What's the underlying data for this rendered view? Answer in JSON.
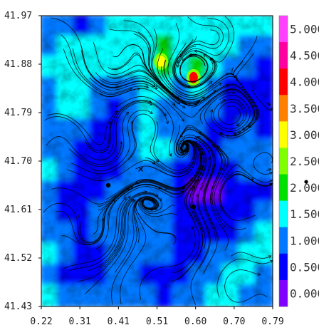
{
  "chart_data": {
    "type": "heatmap",
    "title": "",
    "xlabel": "",
    "ylabel": "",
    "xlim": [
      0.22,
      0.79
    ],
    "ylim": [
      41.43,
      41.97
    ],
    "x_ticks": [
      "0.22",
      "0.31",
      "0.41",
      "0.51",
      "0.60",
      "0.70",
      "0.79"
    ],
    "y_ticks": [
      "41.97",
      "41.88",
      "41.79",
      "41.70",
      "41.61",
      "41.52",
      "41.43"
    ],
    "colorbar": {
      "labels": [
        "0.000",
        "0.500",
        "1.000",
        "1.500",
        "2.000",
        "2.500",
        "3.000",
        "3.500",
        "4.000",
        "4.500",
        "5.000"
      ],
      "colors": [
        "#8000ff",
        "#0000ff",
        "#0078ff",
        "#00ffff",
        "#00e000",
        "#80ff00",
        "#ffff00",
        "#ff8000",
        "#ff0000",
        "#ff00a0",
        "#ff40ff"
      ]
    },
    "field": [
      [
        1.0,
        1.3,
        0.7,
        1.4,
        1.7,
        1.5,
        1.8,
        1.6,
        1.8,
        1.7,
        1.8,
        1.7,
        1.6,
        1.6
      ],
      [
        1.4,
        1.7,
        1.8,
        1.9,
        1.8,
        1.7,
        1.8,
        2.0,
        1.9,
        1.8,
        1.9,
        1.6,
        1.4,
        1.2
      ],
      [
        1.6,
        1.9,
        1.8,
        1.6,
        1.6,
        1.7,
        1.8,
        2.4,
        1.6,
        2.2,
        1.7,
        1.3,
        1.0,
        0.8
      ],
      [
        1.3,
        1.6,
        1.8,
        1.4,
        1.2,
        1.4,
        1.7,
        1.8,
        1.4,
        1.9,
        1.2,
        0.9,
        0.9,
        0.7
      ],
      [
        1.2,
        1.5,
        1.5,
        1.0,
        0.9,
        1.2,
        1.5,
        1.2,
        1.0,
        1.4,
        1.0,
        0.8,
        0.8,
        0.6
      ],
      [
        1.0,
        1.3,
        1.1,
        0.8,
        0.8,
        1.3,
        1.6,
        1.4,
        1.1,
        1.0,
        0.8,
        0.9,
        1.1,
        0.9
      ],
      [
        1.4,
        1.1,
        0.8,
        0.6,
        0.8,
        1.4,
        1.7,
        1.5,
        1.1,
        0.9,
        0.7,
        1.0,
        1.4,
        1.4
      ],
      [
        1.6,
        1.2,
        0.7,
        0.7,
        0.9,
        1.1,
        1.4,
        1.3,
        0.9,
        0.6,
        0.5,
        0.6,
        1.0,
        1.2
      ],
      [
        1.3,
        0.8,
        0.6,
        0.8,
        1.2,
        1.0,
        1.2,
        1.1,
        0.6,
        0.4,
        0.4,
        0.5,
        0.7,
        0.9
      ],
      [
        1.1,
        0.6,
        0.7,
        1.0,
        1.3,
        1.2,
        1.3,
        1.0,
        0.8,
        0.6,
        0.5,
        0.6,
        0.9,
        1.1
      ],
      [
        1.4,
        1.0,
        0.9,
        1.2,
        1.4,
        1.3,
        1.4,
        1.2,
        0.9,
        0.8,
        0.7,
        0.9,
        1.2,
        1.5
      ],
      [
        1.6,
        1.2,
        0.8,
        0.9,
        1.1,
        1.2,
        1.3,
        1.0,
        0.7,
        0.8,
        1.0,
        1.2,
        1.6,
        1.8
      ],
      [
        1.2,
        0.9,
        0.7,
        0.8,
        1.0,
        1.1,
        0.9,
        0.8,
        0.8,
        1.1,
        1.3,
        1.6,
        1.8,
        1.3
      ],
      [
        1.5,
        1.3,
        1.0,
        1.2,
        1.3,
        1.1,
        1.0,
        0.9,
        1.1,
        1.3,
        1.6,
        1.8,
        1.4,
        1.0
      ]
    ],
    "hotspots": [
      {
        "x": 0.515,
        "y": 41.885,
        "value": 3.1
      },
      {
        "x": 0.595,
        "y": 41.855,
        "value": 4.2
      }
    ],
    "markers": [
      {
        "x": 0.385,
        "y": 41.655,
        "symbol": "dot"
      },
      {
        "x": 0.595,
        "y": 41.615,
        "symbol": "dot"
      },
      {
        "x": 0.465,
        "y": 41.685,
        "symbol": "x"
      }
    ]
  }
}
